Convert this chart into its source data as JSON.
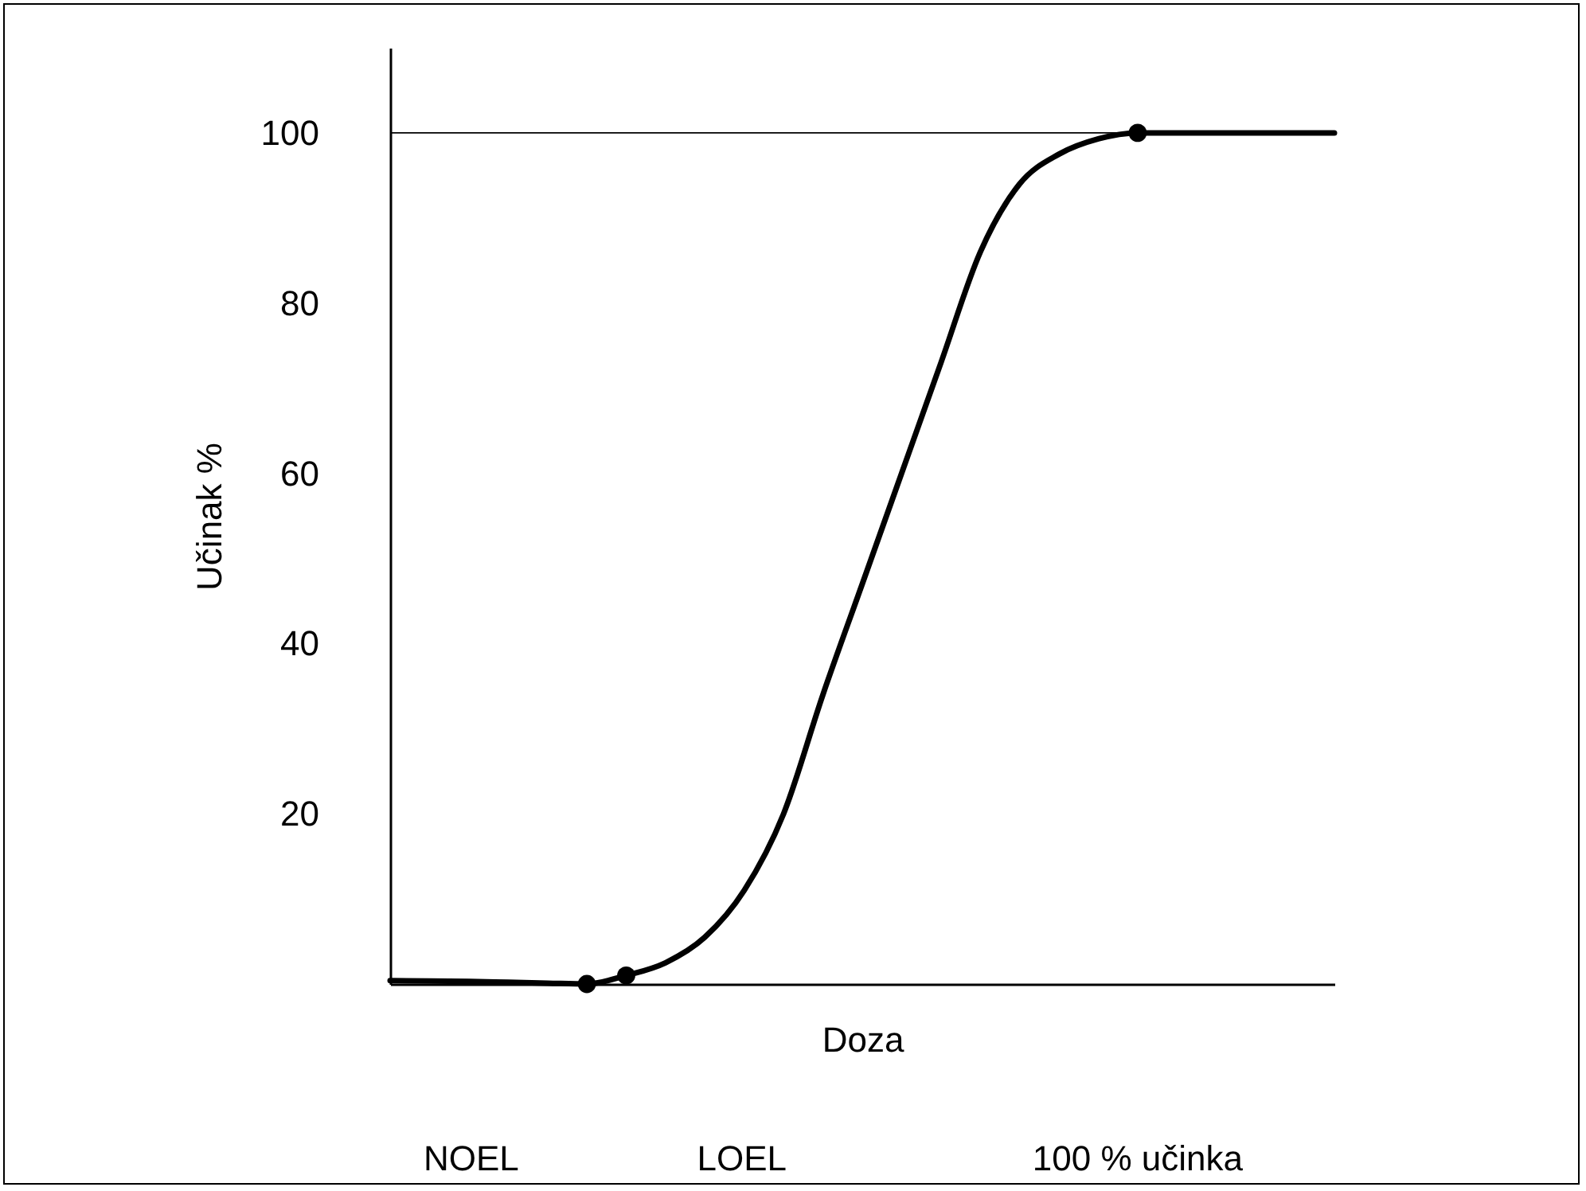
{
  "chart_data": {
    "type": "line",
    "xlabel": "Doza",
    "ylabel": "Učinak %",
    "categories": [
      null,
      null,
      null,
      null,
      null,
      null,
      null,
      null,
      null,
      null,
      null,
      null,
      null,
      null,
      null,
      null,
      null,
      null,
      null,
      null,
      null,
      null,
      null,
      null,
      null
    ],
    "series": [
      {
        "color": "#000000",
        "marker": "none",
        "values": [
          0.4,
          0.35,
          0.3,
          0.2,
          0.1,
          0,
          1,
          2.5,
          5.5,
          11,
          20,
          34,
          47,
          60,
          73,
          86,
          94,
          97.5,
          99.3,
          100,
          100,
          100,
          100,
          100,
          100
        ]
      },
      {
        "type": "scatter",
        "color": "#000000",
        "marker": "circle",
        "values": [
          null,
          null,
          null,
          null,
          null,
          0,
          1,
          null,
          null,
          null,
          null,
          null,
          null,
          null,
          null,
          null,
          null,
          null,
          null,
          100,
          null,
          null,
          null,
          null,
          null
        ]
      }
    ],
    "ylim": [
      0,
      110
    ],
    "yticks": [
      20,
      40,
      60,
      80,
      100
    ],
    "tick_labels": "y",
    "grid": false,
    "ref_lines": [
      {
        "axis": "y",
        "value": 100,
        "color": "#000000"
      }
    ],
    "annotations": [
      "NOEL",
      "LOEL",
      "100 % učinka"
    ]
  }
}
